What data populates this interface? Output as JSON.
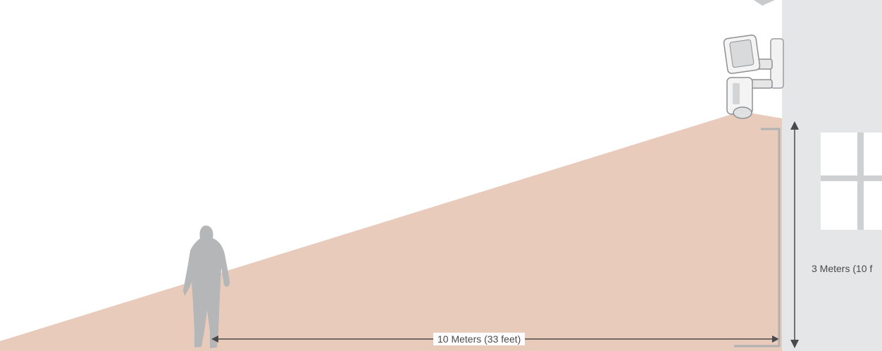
{
  "colors": {
    "beam": "#e8cbbb",
    "wall": "#e5e6e8",
    "person": "#b5b6b8",
    "dimension_line": "#4a4a4a",
    "bracket": "#b0b1b3"
  },
  "icons": {
    "person": "person-silhouette-icon",
    "camera": "floodlight-camera-icon"
  },
  "dimensions": {
    "distance_label": "10 Meters (33 feet)",
    "height_label": "3 Meters (10 f"
  }
}
